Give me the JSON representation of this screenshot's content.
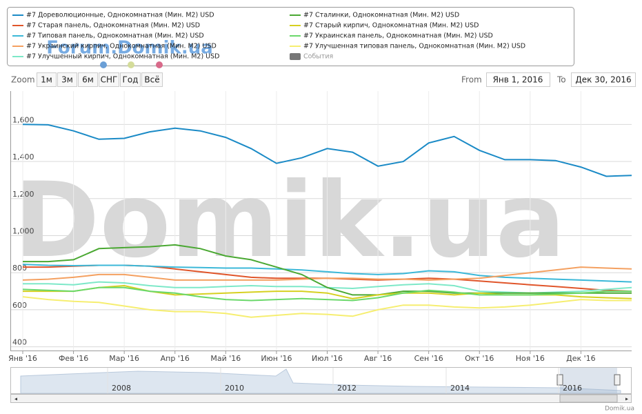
{
  "chart_data": {
    "type": "line",
    "categories": [
      "Янв '16",
      null,
      "Фев '16",
      null,
      "Мар '16",
      null,
      "Апр '16",
      null,
      "Май '16",
      null,
      "Июн '16",
      null,
      "Июл '16",
      null,
      "Авг '16",
      null,
      "Сен '16",
      null,
      "Окт '16",
      null,
      "Ноя '16",
      null,
      "Дек '16",
      null,
      null
    ],
    "series": [
      {
        "name": "#7 Дореволюционные, Однокомнатная (Мин. М2) USD",
        "color": "#1a8ac6",
        "values": [
          1600,
          1598,
          1565,
          1520,
          1525,
          1560,
          1580,
          1565,
          1530,
          1470,
          1390,
          1420,
          1470,
          1450,
          1375,
          1400,
          1500,
          1535,
          1460,
          1410,
          1410,
          1405,
          1370,
          1320,
          1325
        ]
      },
      {
        "name": "#7 Старая панель, Однокомнатная (Мин. М2) USD",
        "color": "#e0552a",
        "values": [
          830,
          830,
          835,
          840,
          840,
          835,
          820,
          805,
          790,
          775,
          770,
          770,
          770,
          765,
          760,
          765,
          770,
          765,
          755,
          745,
          735,
          725,
          715,
          705,
          700
        ]
      },
      {
        "name": "#7 Типовая панель, Однокомнатная (Мин. М2) USD",
        "color": "#3bb8d8",
        "values": [
          845,
          840,
          838,
          840,
          840,
          835,
          830,
          828,
          825,
          825,
          820,
          815,
          805,
          795,
          790,
          795,
          810,
          805,
          785,
          775,
          770,
          765,
          760,
          755,
          750
        ]
      },
      {
        "name": "#7 Украинский кирпич, Однокомнатная (Мин. М2) USD",
        "color": "#f4a060",
        "values": [
          760,
          765,
          775,
          790,
          790,
          775,
          760,
          760,
          760,
          760,
          760,
          765,
          770,
          770,
          765,
          765,
          760,
          765,
          770,
          785,
          800,
          815,
          830,
          825,
          820
        ]
      },
      {
        "name": "#7 Улучшенный кирпич, Однокомнатная (Мин. М2) USD",
        "color": "#7de8c8",
        "values": [
          740,
          740,
          735,
          750,
          745,
          730,
          720,
          720,
          725,
          730,
          725,
          725,
          720,
          715,
          725,
          735,
          740,
          730,
          700,
          695,
          690,
          695,
          700,
          710,
          720
        ]
      },
      {
        "name": "#7 Сталинки, Однокомнатная (Мин. М2) USD",
        "color": "#4aa832",
        "values": [
          860,
          860,
          870,
          930,
          935,
          940,
          950,
          930,
          890,
          870,
          830,
          790,
          720,
          680,
          680,
          700,
          700,
          690,
          690,
          690,
          690,
          690,
          690,
          690,
          690
        ]
      },
      {
        "name": "#7 Старый кирпич, Однокомнатная (Мин. М2) USD",
        "color": "#d6d020",
        "values": [
          700,
          700,
          700,
          720,
          730,
          700,
          680,
          685,
          690,
          695,
          700,
          700,
          690,
          660,
          680,
          690,
          690,
          680,
          690,
          680,
          680,
          680,
          670,
          665,
          660
        ]
      },
      {
        "name": "#7 Украинская панель, Однокомнатная (Мин. М2) USD",
        "color": "#6ad86a",
        "values": [
          710,
          705,
          700,
          720,
          720,
          700,
          690,
          670,
          655,
          650,
          655,
          660,
          655,
          650,
          665,
          690,
          705,
          695,
          680,
          680,
          680,
          685,
          690,
          700,
          700
        ]
      },
      {
        "name": "#7 Улучшенная типовая панель, Однокомнатная (Мин. М2) USD",
        "color": "#f6ee70",
        "values": [
          670,
          655,
          645,
          640,
          620,
          600,
          590,
          590,
          580,
          560,
          570,
          580,
          575,
          565,
          600,
          625,
          625,
          615,
          610,
          615,
          625,
          640,
          655,
          650,
          650
        ]
      }
    ],
    "events_legend": "События",
    "ylim": [
      380,
      1780
    ],
    "yticks": [
      400,
      600,
      800,
      {
        "value": 1000,
        "label": "1,000"
      },
      {
        "value": 1200,
        "label": "1,200"
      },
      {
        "value": 1400,
        "label": "1,400"
      },
      {
        "value": 1600,
        "label": "1,600"
      }
    ],
    "grid": true
  },
  "ui": {
    "zoom_label": "Zoom",
    "zoom_buttons": [
      "1м",
      "3м",
      "6м",
      "СНГ",
      "Год",
      "Всё"
    ],
    "from_label": "From",
    "from_value": "Янв 1, 2016",
    "to_label": "To",
    "to_value": "Дек 30, 2016",
    "navigator_labels": [
      "2008",
      "2010",
      "2012",
      "2014",
      "2016"
    ],
    "watermark_top": "Forum.Domik.ua",
    "watermark": "Domik.ua",
    "credit": "Domik.ua"
  }
}
